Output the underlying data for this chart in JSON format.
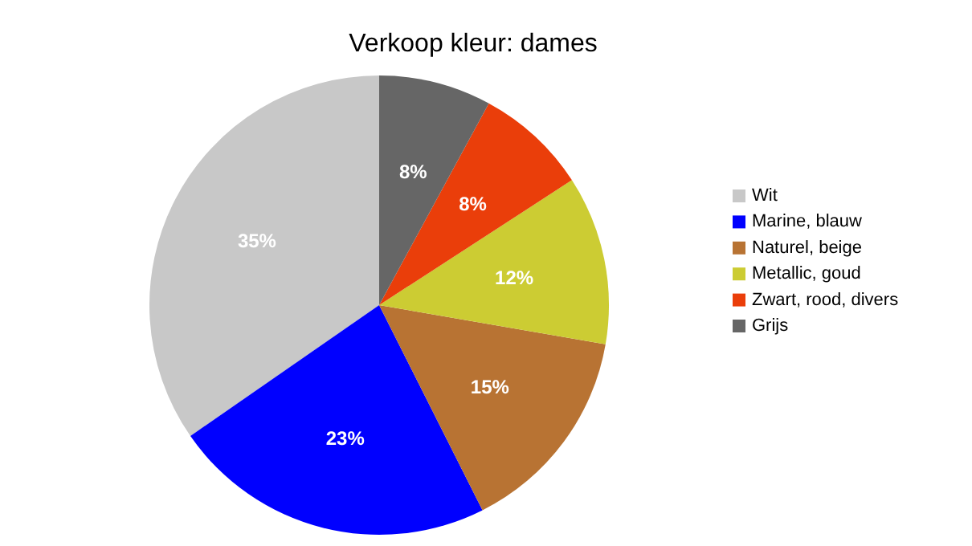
{
  "chart_data": {
    "type": "pie",
    "title": "Verkoop kleur: dames",
    "categories": [
      "Wit",
      "Marine, blauw",
      "Naturel, beige",
      "Metallic, goud",
      "Zwart, rood, divers",
      "Grijs"
    ],
    "values": [
      35,
      23,
      15,
      12,
      8,
      8
    ],
    "value_labels": [
      "35%",
      "23%",
      "15%",
      "12%",
      "8%",
      "8%"
    ],
    "colors": [
      "#c8c8c8",
      "#0000ff",
      "#b87333",
      "#cccc33",
      "#ea3e0a",
      "#666666"
    ],
    "legend": "right"
  }
}
